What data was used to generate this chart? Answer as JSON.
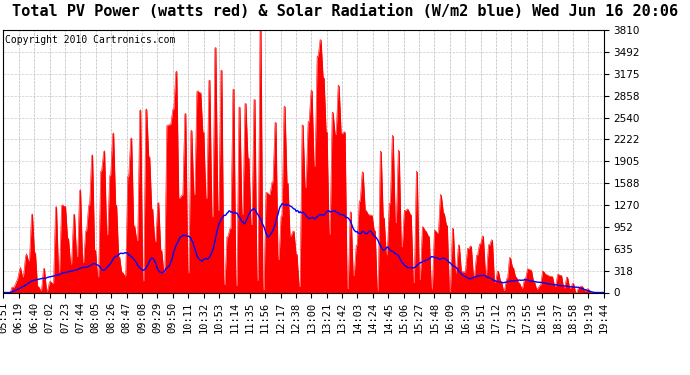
{
  "title": "Total PV Power (watts red) & Solar Radiation (W/m2 blue) Wed Jun 16 20:06",
  "copyright": "Copyright 2010 Cartronics.com",
  "ymin": 0.0,
  "ymax": 3810.0,
  "ytick_interval": 317.5,
  "background_color": "#ffffff",
  "grid_color": "#aaaaaa",
  "red_color": "#ff0000",
  "blue_color": "#0000ff",
  "fill_color": "#ff0000",
  "title_fontsize": 11,
  "copyright_fontsize": 7,
  "tick_fontsize": 7.5,
  "x_labels": [
    "05:51",
    "06:19",
    "06:40",
    "07:02",
    "07:23",
    "07:44",
    "08:05",
    "08:26",
    "08:47",
    "09:08",
    "09:29",
    "09:50",
    "10:11",
    "10:32",
    "10:53",
    "11:14",
    "11:35",
    "11:56",
    "12:17",
    "12:38",
    "13:00",
    "13:21",
    "13:42",
    "14:03",
    "14:24",
    "14:45",
    "15:06",
    "15:27",
    "15:48",
    "16:09",
    "16:30",
    "16:51",
    "17:12",
    "17:33",
    "17:55",
    "18:16",
    "18:37",
    "18:58",
    "19:19",
    "19:44"
  ],
  "n_points": 600,
  "pv_max": 3810.0,
  "solar_max": 1270.0
}
